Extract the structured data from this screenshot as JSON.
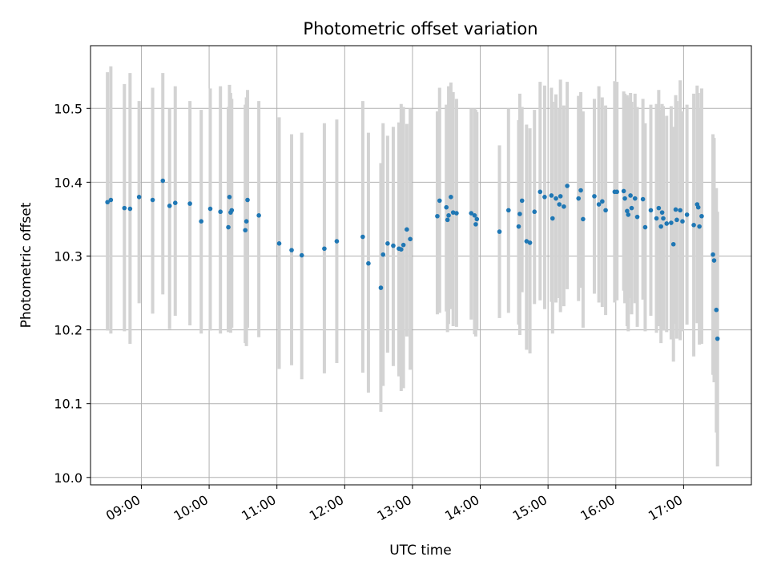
{
  "chart_data": {
    "type": "scatter",
    "title": "Photometric offset variation",
    "xlabel": "UTC time",
    "ylabel": "Photometric offset",
    "x_axis_type": "time",
    "xlim": [
      "08:15",
      "18:00"
    ],
    "ylim": [
      9.99,
      10.585
    ],
    "x_ticks": [
      "09:00",
      "10:00",
      "11:00",
      "12:00",
      "13:00",
      "14:00",
      "15:00",
      "16:00",
      "17:00"
    ],
    "y_ticks": [
      "10.0",
      "10.1",
      "10.2",
      "10.3",
      "10.4",
      "10.5"
    ],
    "grid": true,
    "colors": {
      "point": "#1f77b4",
      "errorbar": "#d3d3d3"
    },
    "series": [
      {
        "points": [
          [
            "08:30",
            10.373,
            10.549,
            10.199
          ],
          [
            "08:33",
            10.376,
            10.557,
            10.195
          ],
          [
            "08:45",
            10.365,
            10.533,
            10.198
          ],
          [
            "08:50",
            10.364,
            10.548,
            10.181
          ],
          [
            "08:58",
            10.38,
            10.51,
            10.236
          ],
          [
            "09:10",
            10.376,
            10.528,
            10.222
          ],
          [
            "09:19",
            10.402,
            10.548,
            10.248
          ],
          [
            "09:25",
            10.368,
            10.5,
            10.201
          ],
          [
            "09:30",
            10.372,
            10.53,
            10.219
          ],
          [
            "09:43",
            10.371,
            10.51,
            10.206
          ],
          [
            "09:53",
            10.347,
            10.498,
            10.195
          ],
          [
            "10:01",
            10.364,
            10.527,
            10.199
          ],
          [
            "10:10",
            10.36,
            10.53,
            10.195
          ],
          [
            "10:17",
            10.339,
            10.502,
            10.197
          ],
          [
            "10:18",
            10.38,
            10.532,
            10.226
          ],
          [
            "10:19",
            10.359,
            10.521,
            10.196
          ],
          [
            "10:20",
            10.362,
            10.513,
            10.203
          ],
          [
            "10:32",
            10.335,
            10.505,
            10.182
          ],
          [
            "10:33",
            10.347,
            10.515,
            10.178
          ],
          [
            "10:34",
            10.376,
            10.525,
            10.203
          ],
          [
            "10:44",
            10.355,
            10.51,
            10.19
          ],
          [
            "11:02",
            10.317,
            10.488,
            10.147
          ],
          [
            "11:13",
            10.308,
            10.465,
            10.152
          ],
          [
            "11:22",
            10.301,
            10.467,
            10.133
          ],
          [
            "11:42",
            10.31,
            10.48,
            10.141
          ],
          [
            "11:53",
            10.32,
            10.485,
            10.155
          ],
          [
            "12:16",
            10.326,
            10.51,
            10.142
          ],
          [
            "12:21",
            10.29,
            10.467,
            10.115
          ],
          [
            "12:32",
            10.257,
            10.426,
            10.089
          ],
          [
            "12:34",
            10.302,
            10.48,
            10.124
          ],
          [
            "12:38",
            10.317,
            10.463,
            10.169
          ],
          [
            "12:43",
            10.314,
            10.475,
            10.151
          ],
          [
            "12:48",
            10.31,
            10.481,
            10.137
          ],
          [
            "12:50",
            10.309,
            10.506,
            10.117
          ],
          [
            "12:52",
            10.315,
            10.502,
            10.121
          ],
          [
            "12:55",
            10.336,
            10.479,
            10.191
          ],
          [
            "12:58",
            10.323,
            10.5,
            10.146
          ],
          [
            "13:22",
            10.354,
            10.496,
            10.221
          ],
          [
            "13:24",
            10.375,
            10.528,
            10.223
          ],
          [
            "13:30",
            10.366,
            10.505,
            10.225
          ],
          [
            "13:31",
            10.349,
            10.5,
            10.197
          ],
          [
            "13:32",
            10.355,
            10.53,
            10.208
          ],
          [
            "13:34",
            10.38,
            10.535,
            10.228
          ],
          [
            "13:36",
            10.359,
            10.522,
            10.205
          ],
          [
            "13:39",
            10.358,
            10.513,
            10.204
          ],
          [
            "13:52",
            10.358,
            10.5,
            10.214
          ],
          [
            "13:55",
            10.355,
            10.5,
            10.194
          ],
          [
            "13:56",
            10.343,
            10.498,
            10.191
          ],
          [
            "13:57",
            10.35,
            10.495,
            10.2
          ],
          [
            "14:17",
            10.333,
            10.45,
            10.216
          ],
          [
            "14:25",
            10.362,
            10.5,
            10.223
          ],
          [
            "14:34",
            10.34,
            10.484,
            10.207
          ],
          [
            "14:35",
            10.357,
            10.52,
            10.193
          ],
          [
            "14:37",
            10.375,
            10.502,
            10.251
          ],
          [
            "14:41",
            10.32,
            10.478,
            10.173
          ],
          [
            "14:44",
            10.318,
            10.473,
            10.168
          ],
          [
            "14:48",
            10.36,
            10.498,
            10.235
          ],
          [
            "14:53",
            10.387,
            10.536,
            10.24
          ],
          [
            "14:57",
            10.38,
            10.531,
            10.228
          ],
          [
            "15:03",
            10.382,
            10.528,
            10.238
          ],
          [
            "15:04",
            10.351,
            10.509,
            10.195
          ],
          [
            "15:07",
            10.378,
            10.519,
            10.237
          ],
          [
            "15:10",
            10.37,
            10.5,
            10.243
          ],
          [
            "15:11",
            10.381,
            10.539,
            10.224
          ],
          [
            "15:14",
            10.367,
            10.504,
            10.232
          ],
          [
            "15:17",
            10.395,
            10.536,
            10.255
          ],
          [
            "15:27",
            10.378,
            10.517,
            10.239
          ],
          [
            "15:29",
            10.389,
            10.522,
            10.257
          ],
          [
            "15:31",
            10.35,
            10.496,
            10.203
          ],
          [
            "15:41",
            10.381,
            10.513,
            10.249
          ],
          [
            "15:45",
            10.37,
            10.53,
            10.237
          ],
          [
            "15:48",
            10.374,
            10.515,
            10.231
          ],
          [
            "15:51",
            10.362,
            10.504,
            10.22
          ],
          [
            "15:59",
            10.387,
            10.537,
            10.237
          ],
          [
            "16:01",
            10.387,
            10.536,
            10.24
          ],
          [
            "16:07",
            10.388,
            10.523,
            10.253
          ],
          [
            "16:08",
            10.378,
            10.52,
            10.236
          ],
          [
            "16:10",
            10.361,
            10.518,
            10.205
          ],
          [
            "16:11",
            10.356,
            10.515,
            10.198
          ],
          [
            "16:13",
            10.382,
            10.521,
            10.243
          ],
          [
            "16:14",
            10.365,
            10.509,
            10.221
          ],
          [
            "16:17",
            10.378,
            10.52,
            10.236
          ],
          [
            "16:19",
            10.353,
            10.502,
            10.204
          ],
          [
            "16:24",
            10.377,
            10.513,
            10.241
          ],
          [
            "16:26",
            10.339,
            10.48,
            10.198
          ],
          [
            "16:31",
            10.362,
            10.505,
            10.219
          ],
          [
            "16:36",
            10.351,
            10.506,
            10.196
          ],
          [
            "16:38",
            10.365,
            10.525,
            10.205
          ],
          [
            "16:40",
            10.34,
            10.498,
            10.182
          ],
          [
            "16:41",
            10.359,
            10.506,
            10.212
          ],
          [
            "16:42",
            10.351,
            10.503,
            10.199
          ],
          [
            "16:45",
            10.344,
            10.49,
            10.197
          ],
          [
            "16:49",
            10.345,
            10.503,
            10.187
          ],
          [
            "16:51",
            10.316,
            10.475,
            10.157
          ],
          [
            "16:53",
            10.363,
            10.518,
            10.208
          ],
          [
            "16:54",
            10.349,
            10.51,
            10.188
          ],
          [
            "16:57",
            10.362,
            10.538,
            10.186
          ],
          [
            "16:59",
            10.347,
            10.496,
            10.198
          ],
          [
            "17:03",
            10.356,
            10.505,
            10.207
          ],
          [
            "17:09",
            10.342,
            10.52,
            10.164
          ],
          [
            "17:12",
            10.37,
            10.531,
            10.209
          ],
          [
            "17:13",
            10.366,
            10.521,
            10.211
          ],
          [
            "17:14",
            10.34,
            10.5,
            10.18
          ],
          [
            "17:16",
            10.354,
            10.527,
            10.181
          ],
          [
            "17:26",
            10.302,
            10.465,
            10.139
          ],
          [
            "17:27",
            10.294,
            10.46,
            10.129
          ],
          [
            "17:29",
            10.227,
            10.392,
            10.061
          ],
          [
            "17:30",
            10.188,
            10.36,
            10.015
          ]
        ]
      }
    ]
  }
}
